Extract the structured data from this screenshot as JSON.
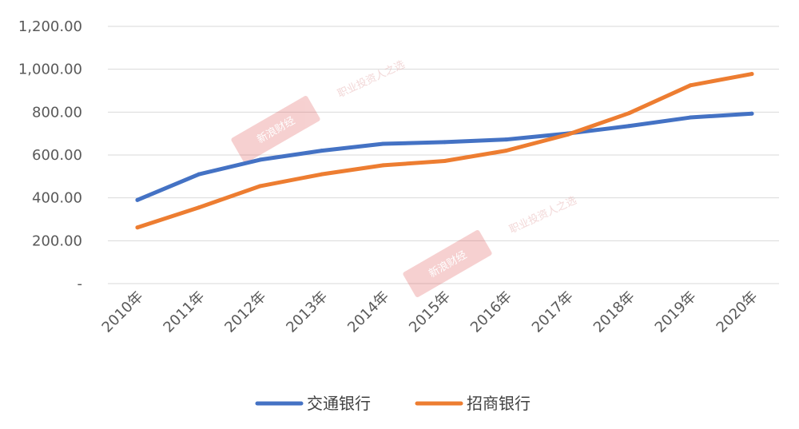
{
  "chart_data": {
    "type": "line",
    "categories": [
      "2010年",
      "2011年",
      "2012年",
      "2013年",
      "2014年",
      "2015年",
      "2016年",
      "2017年",
      "2018年",
      "2019年",
      "2020年"
    ],
    "series": [
      {
        "name": "交通银行",
        "color": "#4472c4",
        "values": [
          390,
          510,
          578,
          620,
          652,
          660,
          672,
          700,
          735,
          775,
          793
        ]
      },
      {
        "name": "招商银行",
        "color": "#ed7d31",
        "values": [
          262,
          355,
          455,
          510,
          552,
          572,
          620,
          695,
          795,
          925,
          978
        ]
      }
    ],
    "y_ticks": [
      {
        "value": 0,
        "label": "-"
      },
      {
        "value": 200,
        "label": "200.00"
      },
      {
        "value": 400,
        "label": "400.00"
      },
      {
        "value": 600,
        "label": "600.00"
      },
      {
        "value": 800,
        "label": "800.00"
      },
      {
        "value": 1000,
        "label": "1,000.00"
      },
      {
        "value": 1200,
        "label": "1,200.00"
      }
    ],
    "ylim": [
      0,
      1200
    ],
    "grid": true,
    "legend_position": "bottom",
    "title": "",
    "xlabel": "",
    "ylabel": ""
  },
  "watermark": {
    "text": "职业投资人之选",
    "stamp_text": "新浪财经",
    "color": "#e05a5a"
  }
}
